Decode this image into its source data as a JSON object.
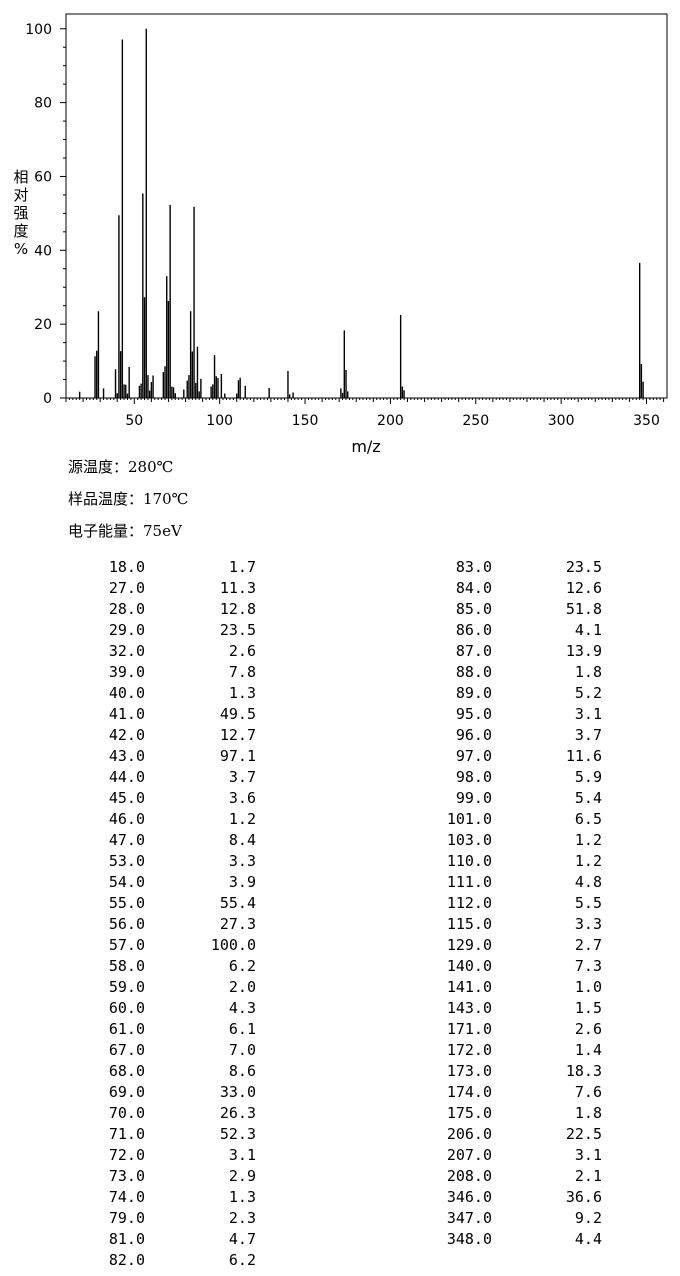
{
  "chart_data": {
    "type": "bar",
    "title": "",
    "xlabel": "m/z",
    "ylabel": "相对强度%",
    "xlim": [
      10,
      362
    ],
    "ylim": [
      0,
      104
    ],
    "x_ticks": [
      50,
      100,
      150,
      200,
      250,
      300,
      350
    ],
    "y_ticks": [
      0,
      20,
      40,
      60,
      80,
      100
    ],
    "grid": false,
    "legend": "none",
    "bar_color": "#000000",
    "peaks": [
      [
        18,
        1.7
      ],
      [
        27,
        11.3
      ],
      [
        28,
        12.8
      ],
      [
        29,
        23.5
      ],
      [
        32,
        2.6
      ],
      [
        39,
        7.8
      ],
      [
        40,
        1.3
      ],
      [
        41,
        49.5
      ],
      [
        42,
        12.7
      ],
      [
        43,
        97.1
      ],
      [
        44,
        3.7
      ],
      [
        45,
        3.6
      ],
      [
        46,
        1.2
      ],
      [
        47,
        8.4
      ],
      [
        53,
        3.3
      ],
      [
        54,
        3.9
      ],
      [
        55,
        55.4
      ],
      [
        56,
        27.3
      ],
      [
        57,
        100.0
      ],
      [
        58,
        6.2
      ],
      [
        59,
        2.0
      ],
      [
        60,
        4.3
      ],
      [
        61,
        6.1
      ],
      [
        67,
        7.0
      ],
      [
        68,
        8.6
      ],
      [
        69,
        33.0
      ],
      [
        70,
        26.3
      ],
      [
        71,
        52.3
      ],
      [
        72,
        3.1
      ],
      [
        73,
        2.9
      ],
      [
        74,
        1.3
      ],
      [
        79,
        2.3
      ],
      [
        81,
        4.7
      ],
      [
        82,
        6.2
      ],
      [
        83,
        23.5
      ],
      [
        84,
        12.6
      ],
      [
        85,
        51.8
      ],
      [
        86,
        4.1
      ],
      [
        87,
        13.9
      ],
      [
        88,
        1.8
      ],
      [
        89,
        5.2
      ],
      [
        95,
        3.1
      ],
      [
        96,
        3.7
      ],
      [
        97,
        11.6
      ],
      [
        98,
        5.9
      ],
      [
        99,
        5.4
      ],
      [
        101,
        6.5
      ],
      [
        103,
        1.2
      ],
      [
        110,
        1.2
      ],
      [
        111,
        4.8
      ],
      [
        112,
        5.5
      ],
      [
        115,
        3.3
      ],
      [
        129,
        2.7
      ],
      [
        140,
        7.3
      ],
      [
        141,
        1.0
      ],
      [
        143,
        1.5
      ],
      [
        171,
        2.6
      ],
      [
        172,
        1.4
      ],
      [
        173,
        18.3
      ],
      [
        174,
        7.6
      ],
      [
        175,
        1.8
      ],
      [
        206,
        22.5
      ],
      [
        207,
        3.1
      ],
      [
        208,
        2.1
      ],
      [
        346,
        36.6
      ],
      [
        347,
        9.2
      ],
      [
        348,
        4.4
      ]
    ]
  },
  "conditions": {
    "source_temp": "源温度：280℃",
    "sample_temp": "样品温度：170℃",
    "electron_energy": "电子能量：75eV"
  },
  "table_left": [
    [
      "18.0",
      "1.7"
    ],
    [
      "27.0",
      "11.3"
    ],
    [
      "28.0",
      "12.8"
    ],
    [
      "29.0",
      "23.5"
    ],
    [
      "32.0",
      "2.6"
    ],
    [
      "39.0",
      "7.8"
    ],
    [
      "40.0",
      "1.3"
    ],
    [
      "41.0",
      "49.5"
    ],
    [
      "42.0",
      "12.7"
    ],
    [
      "43.0",
      "97.1"
    ],
    [
      "44.0",
      "3.7"
    ],
    [
      "45.0",
      "3.6"
    ],
    [
      "46.0",
      "1.2"
    ],
    [
      "47.0",
      "8.4"
    ],
    [
      "53.0",
      "3.3"
    ],
    [
      "54.0",
      "3.9"
    ],
    [
      "55.0",
      "55.4"
    ],
    [
      "56.0",
      "27.3"
    ],
    [
      "57.0",
      "100.0"
    ],
    [
      "58.0",
      "6.2"
    ],
    [
      "59.0",
      "2.0"
    ],
    [
      "60.0",
      "4.3"
    ],
    [
      "61.0",
      "6.1"
    ],
    [
      "67.0",
      "7.0"
    ],
    [
      "68.0",
      "8.6"
    ],
    [
      "69.0",
      "33.0"
    ],
    [
      "70.0",
      "26.3"
    ],
    [
      "71.0",
      "52.3"
    ],
    [
      "72.0",
      "3.1"
    ],
    [
      "73.0",
      "2.9"
    ],
    [
      "74.0",
      "1.3"
    ],
    [
      "79.0",
      "2.3"
    ],
    [
      "81.0",
      "4.7"
    ],
    [
      "82.0",
      "6.2"
    ]
  ],
  "table_right": [
    [
      "83.0",
      "23.5"
    ],
    [
      "84.0",
      "12.6"
    ],
    [
      "85.0",
      "51.8"
    ],
    [
      "86.0",
      "4.1"
    ],
    [
      "87.0",
      "13.9"
    ],
    [
      "88.0",
      "1.8"
    ],
    [
      "89.0",
      "5.2"
    ],
    [
      "95.0",
      "3.1"
    ],
    [
      "96.0",
      "3.7"
    ],
    [
      "97.0",
      "11.6"
    ],
    [
      "98.0",
      "5.9"
    ],
    [
      "99.0",
      "5.4"
    ],
    [
      "101.0",
      "6.5"
    ],
    [
      "103.0",
      "1.2"
    ],
    [
      "110.0",
      "1.2"
    ],
    [
      "111.0",
      "4.8"
    ],
    [
      "112.0",
      "5.5"
    ],
    [
      "115.0",
      "3.3"
    ],
    [
      "129.0",
      "2.7"
    ],
    [
      "140.0",
      "7.3"
    ],
    [
      "141.0",
      "1.0"
    ],
    [
      "143.0",
      "1.5"
    ],
    [
      "171.0",
      "2.6"
    ],
    [
      "172.0",
      "1.4"
    ],
    [
      "173.0",
      "18.3"
    ],
    [
      "174.0",
      "7.6"
    ],
    [
      "175.0",
      "1.8"
    ],
    [
      "206.0",
      "22.5"
    ],
    [
      "207.0",
      "3.1"
    ],
    [
      "208.0",
      "2.1"
    ],
    [
      "346.0",
      "36.6"
    ],
    [
      "347.0",
      "9.2"
    ],
    [
      "348.0",
      "4.4"
    ]
  ]
}
